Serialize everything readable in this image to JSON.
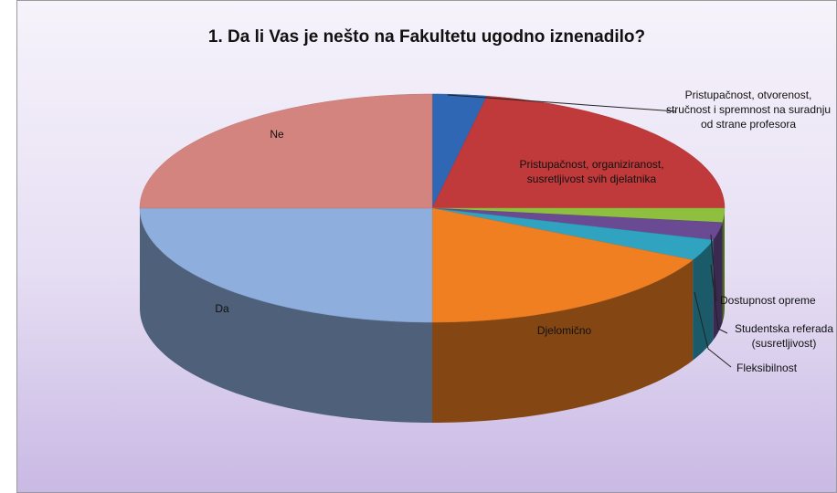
{
  "chart_data": {
    "type": "pie3d",
    "title": "1. Da li Vas je nešto na Fakultetu ugodno iznenadilo?",
    "categories": [
      "Pristupačnost, otvorenost, stručnost i spremnost na suradnju od strane profesora",
      "Pristupačnost, organiziranost, susretljivost svih djelatnika",
      "Dostupnost opreme",
      "Studentska referada (susretljivost)",
      "Fleksibilnost",
      "Djelomično",
      "Da",
      "Ne"
    ],
    "values": [
      3,
      22,
      2,
      2.5,
      3,
      17.5,
      25,
      25
    ],
    "colors": [
      "#2f67b4",
      "#c0393b",
      "#8fbf3e",
      "#6a4a93",
      "#2fa3bf",
      "#f07f22",
      "#8eaede",
      "#d4847f"
    ]
  }
}
